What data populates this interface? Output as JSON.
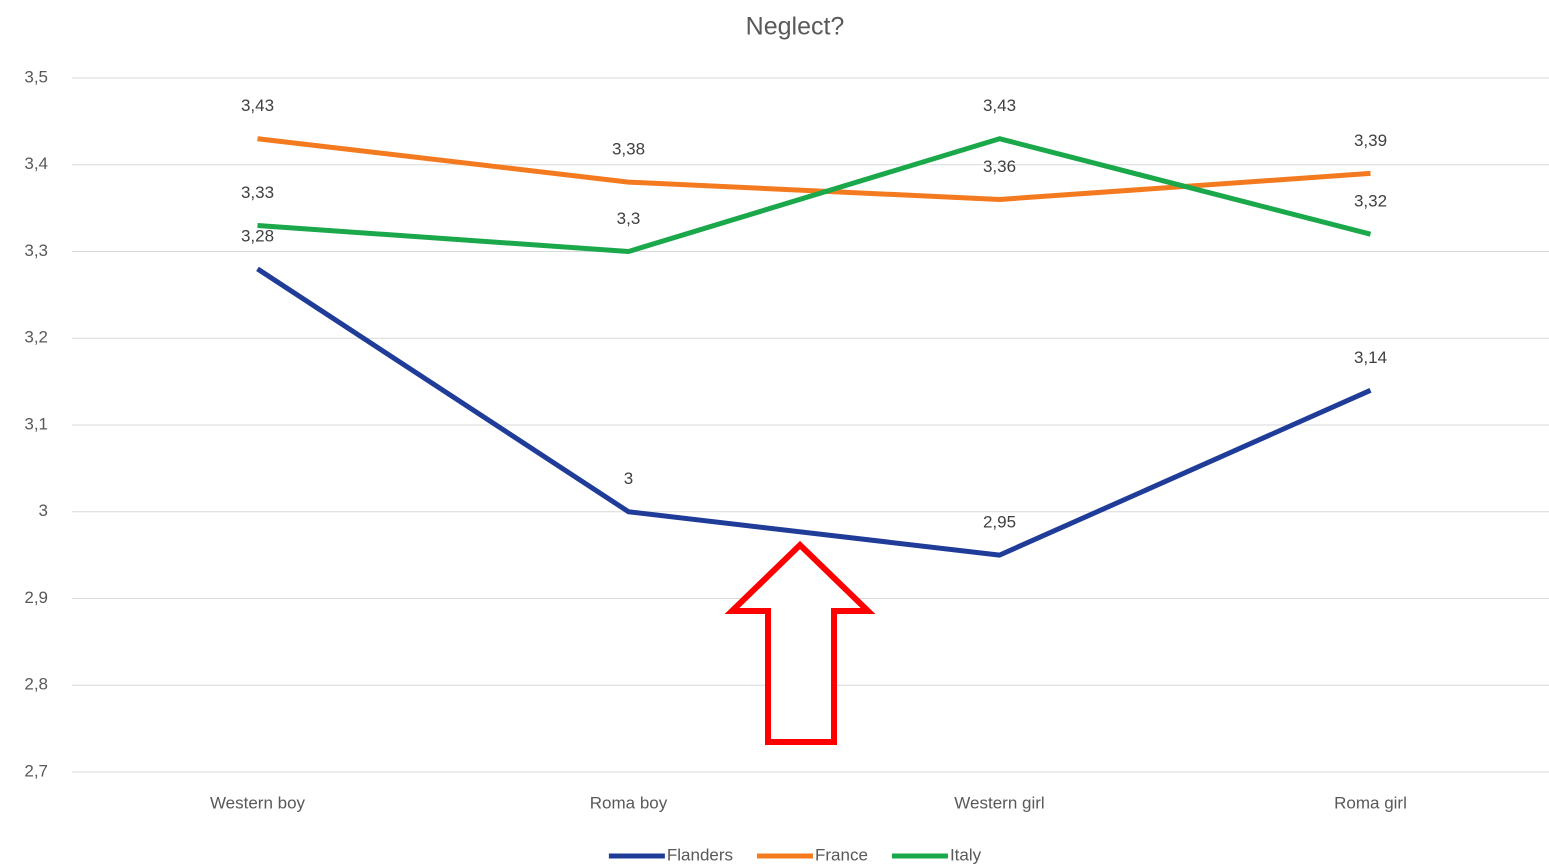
{
  "chart_data": {
    "type": "line",
    "title": "Neglect?",
    "categories": [
      "Western boy",
      "Roma boy",
      "Western girl",
      "Roma girl"
    ],
    "series": [
      {
        "name": "Flanders",
        "color": "#1f3c99",
        "values": [
          3.28,
          3.0,
          2.95,
          3.14
        ],
        "value_labels": [
          "3,28",
          "3",
          "2,95",
          "3,14"
        ]
      },
      {
        "name": "France",
        "color": "#f47a20",
        "values": [
          3.43,
          3.38,
          3.36,
          3.39
        ],
        "value_labels": [
          "3,43",
          "3,38",
          "3,36",
          "3,39"
        ]
      },
      {
        "name": "Italy",
        "color": "#1aa84a",
        "values": [
          3.33,
          3.3,
          3.43,
          3.32
        ],
        "value_labels": [
          "3,33",
          "3,3",
          "3,43",
          "3,32"
        ]
      }
    ],
    "ylim": [
      2.7,
      3.5
    ],
    "yticks": [
      {
        "value": 2.7,
        "label": "2,7"
      },
      {
        "value": 2.8,
        "label": "2,8"
      },
      {
        "value": 2.9,
        "label": "2,9"
      },
      3,
      {
        "value": 3.1,
        "label": "3,1"
      },
      {
        "value": 3.2,
        "label": "3,2"
      },
      {
        "value": 3.3,
        "label": "3,3"
      },
      {
        "value": 3.4,
        "label": "3,4"
      },
      {
        "value": 3.5,
        "label": "3,5"
      }
    ],
    "grid": true,
    "legend": "bottom"
  }
}
